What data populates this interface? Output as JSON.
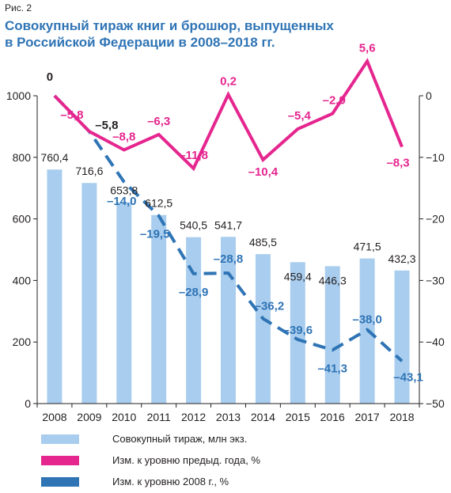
{
  "figure_label": "Рис. 2",
  "title_lines": [
    "Совокупный тираж книг и брошюр, выпущенных",
    "в Российской Федерации в 2008–2018 гг."
  ],
  "colors": {
    "bars": "#a9cdee",
    "prev_year": "#e5268f",
    "base_2008": "#2f74b5",
    "title": "#2f74b5",
    "text": "#231f20"
  },
  "legend": [
    {
      "label": "Совокупный тираж, млн экз.",
      "kind": "bar"
    },
    {
      "label": "Изм. к уровню предыд. года, %",
      "kind": "prev"
    },
    {
      "label": "Изм. к уровню 2008 г., %",
      "kind": "base"
    }
  ],
  "chart_data": {
    "type": "bar",
    "categories": [
      "2008",
      "2009",
      "2010",
      "2011",
      "2012",
      "2013",
      "2014",
      "2015",
      "2016",
      "2017",
      "2018"
    ],
    "left_axis": {
      "ylim": [
        0,
        1000
      ],
      "ticks": [
        "0",
        "200",
        "400",
        "600",
        "800",
        "1000"
      ]
    },
    "right_axis": {
      "ylim": [
        -50,
        0
      ],
      "ticks": [
        "0",
        "−10",
        "−20",
        "−30",
        "−40",
        "−50"
      ]
    },
    "series": [
      {
        "name": "Совокупный тираж, млн экз.",
        "kind": "bar",
        "axis": "left",
        "values": [
          760.4,
          716.6,
          653.8,
          612.5,
          540.5,
          541.7,
          485.5,
          459.4,
          446.3,
          471.5,
          432.3
        ],
        "labels": [
          "760,4",
          "716,6",
          "653,8",
          "612,5",
          "540,5",
          "541,7",
          "485,5",
          "459,4",
          "446,3",
          "471,5",
          "432,3"
        ]
      },
      {
        "name": "Изм. к уровню предыд. года, %",
        "kind": "line",
        "axis": "right",
        "values": [
          0,
          -5.8,
          -8.8,
          -6.3,
          -11.8,
          0.2,
          -10.4,
          -5.4,
          -2.9,
          5.6,
          -8.3
        ],
        "labels": [
          "0",
          "–5,8",
          "–8,8",
          "–6,3",
          "–11,8",
          "0,2",
          "–10,4",
          "–5,4",
          "–2,9",
          "5,6",
          "–8,3"
        ]
      },
      {
        "name": "Изм. к уровню 2008 г., %",
        "kind": "dashed-line",
        "axis": "right",
        "values": [
          0,
          -5.8,
          -14.0,
          -19.5,
          -28.9,
          -28.8,
          -36.2,
          -39.6,
          -41.3,
          -38.0,
          -43.1
        ],
        "labels": [
          "0",
          "–5,8",
          "–14,0",
          "–19,5",
          "–28,9",
          "–28,8",
          "–36,2",
          "–39,6",
          "–41,3",
          "–38,0",
          "–43,1"
        ]
      }
    ],
    "grid": false,
    "legend_position": "bottom"
  }
}
